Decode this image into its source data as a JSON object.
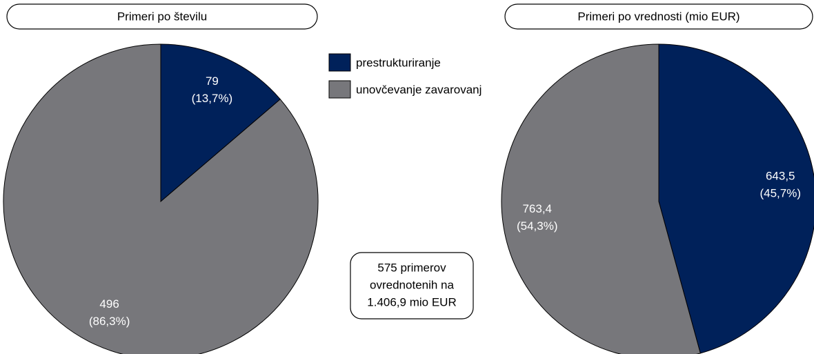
{
  "chart_data": [
    {
      "type": "pie",
      "title": "Primeri po številu",
      "values": [
        79,
        496
      ],
      "percentages": [
        13.7,
        86.3
      ],
      "percentage_labels": [
        "(13,7%)",
        "(86,3%)"
      ]
    },
    {
      "type": "pie",
      "title": "Primeri po vrednosti (mio EUR)",
      "values": [
        643.5,
        763.4
      ],
      "value_labels": [
        "643,5",
        "763,4"
      ],
      "percentages": [
        45.7,
        54.3
      ],
      "percentage_labels": [
        "(45,7%)",
        "(54,3%)"
      ]
    }
  ],
  "legend": {
    "names": [
      "prestrukturiranje",
      "unovčevanje zavarovanj"
    ],
    "colors": [
      "#00215a",
      "#77777b"
    ]
  },
  "annotation": [
    "575 primerov",
    "ovrednotenih na",
    "1.406,9 mio EUR"
  ]
}
